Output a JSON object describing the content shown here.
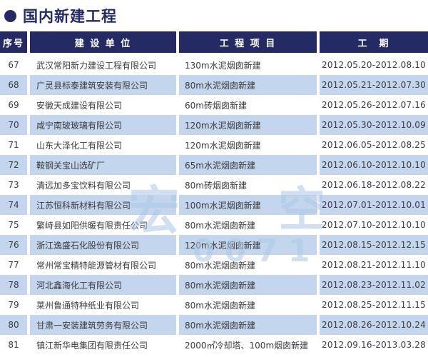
{
  "title": {
    "bullet": "●",
    "text": "国内新建工程"
  },
  "colors": {
    "header_navy": "#242a63",
    "row_stripe_blue": "#c3d6ed",
    "body_text": "#3b3b3b",
    "watermark_blue": "#aac8e6"
  },
  "table": {
    "headers": [
      {
        "label": "序号"
      },
      {
        "label": "建 设 单 位"
      },
      {
        "label": "工 程 项 目"
      },
      {
        "label": "工　期"
      }
    ],
    "rows": [
      {
        "id": "67",
        "company": "武汉常阳新力建设工程有限公司",
        "project": "130m水泥烟囱新建",
        "period": "2012.05.20-2012.08.10"
      },
      {
        "id": "68",
        "company": "广灵县标泰建筑安装有限公司",
        "project": "80m水泥烟囱新建",
        "period": "2012.05.21-2012.07.30"
      },
      {
        "id": "69",
        "company": "安徽天成建设有限公司",
        "project": "60m砖烟囱新建",
        "period": "2012.05.26-2012.07.16"
      },
      {
        "id": "70",
        "company": "咸宁南玻玻璃有限公司",
        "project": "120m水泥烟囱新建",
        "period": "2012.05.30-2012.10.09"
      },
      {
        "id": "71",
        "company": "山东大泽化工有限公司",
        "project": "120m水泥烟囱新建",
        "period": "2012.06.05-2012.08.25"
      },
      {
        "id": "72",
        "company": "鞍钢关宝山选矿厂",
        "project": "65m水泥烟囱新建",
        "period": "2012.06.10-2012.10.10"
      },
      {
        "id": "73",
        "company": "清远加多宝饮料有限公司",
        "project": "80m砖烟囱新建",
        "period": "2012.06.18-2012.08.22"
      },
      {
        "id": "74",
        "company": "江苏恒科新材料有限公司",
        "project": "100m水泥烟囱新建",
        "period": "2012.07.01-2012.10.01"
      },
      {
        "id": "75",
        "company": "繁峙县如阳供暖有限责任公司",
        "project": "80m水泥烟囱新建",
        "period": "2012.07.10-2012.10.10"
      },
      {
        "id": "76",
        "company": "浙江逸盛石化股份有限公司",
        "project": "120m水泥烟囱新建",
        "period": "2012.08.15-2012.12.15"
      },
      {
        "id": "77",
        "company": "常州常宝精特能源管材有限公司",
        "project": "80m水泥烟囱新建",
        "period": "2012.08.21-2012.11.10"
      },
      {
        "id": "78",
        "company": "河北鑫海化工有限公司",
        "project": "80m水泥烟囱新建",
        "period": "2012.08.23-2012.11.02"
      },
      {
        "id": "79",
        "company": "莱州鲁通特种纸业有限公司",
        "project": "80m水泥烟囱新建",
        "period": "2012.08.25-2012.11.15"
      },
      {
        "id": "80",
        "company": "甘肃一安装建筑劳务有限公司",
        "project": "80m水泥烟囱新建",
        "period": "2012.08.26-2012.10.24"
      },
      {
        "id": "81",
        "company": "镇江新华电集团有限责任公司",
        "project": "2000㎡冷却塔、100m烟囱新建",
        "period": "2012.09.16-2013.03.28"
      }
    ]
  },
  "watermark": {
    "fragments": [
      "宏",
      "空",
      "0071"
    ]
  }
}
